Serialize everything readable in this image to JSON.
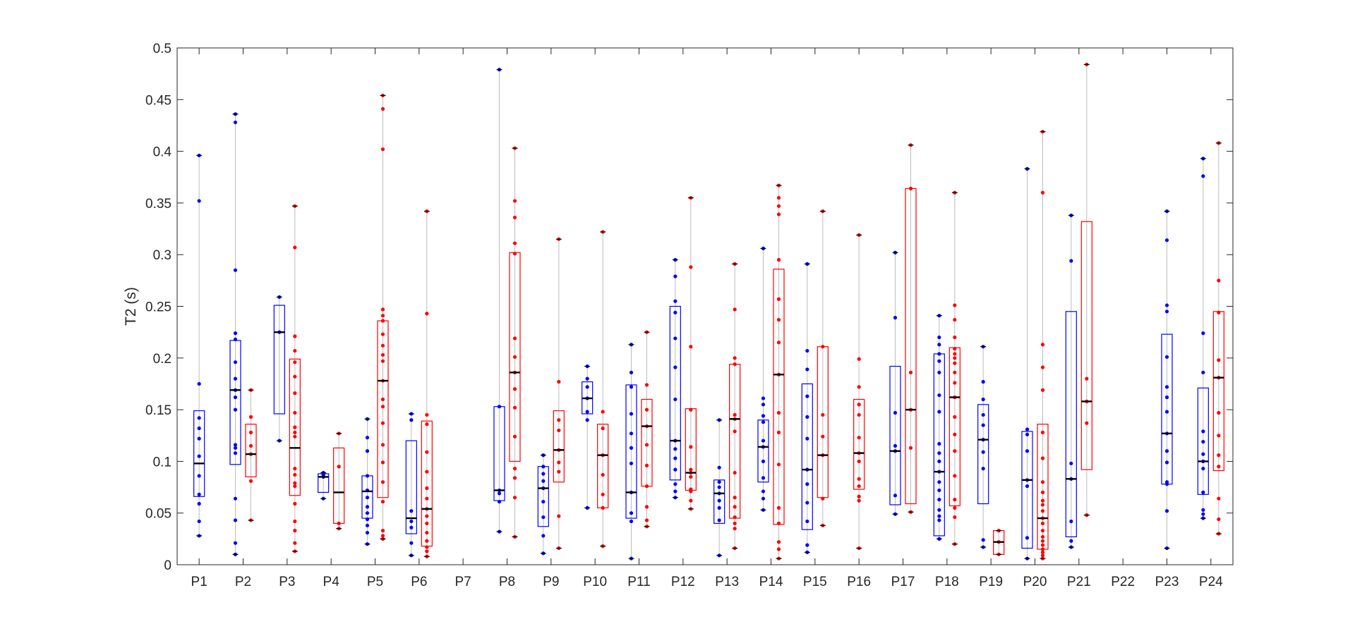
{
  "chart_data": {
    "type": "box",
    "title": "",
    "xlabel": "",
    "ylabel": "T2 (s)",
    "ylim": [
      0,
      0.5
    ],
    "yticks": [
      0,
      0.05,
      0.1,
      0.15,
      0.2,
      0.25,
      0.3,
      0.35,
      0.4,
      0.45,
      0.5
    ],
    "ytick_labels": [
      "0",
      "0.05",
      "0.1",
      "0.15",
      "0.2",
      "0.25",
      "0.3",
      "0.35",
      "0.4",
      "0.45",
      "0.5"
    ],
    "grid": false,
    "categories": [
      "P1",
      "P2",
      "P3",
      "P4",
      "P5",
      "P6",
      "P7",
      "P8",
      "P9",
      "P10",
      "P11",
      "P12",
      "P13",
      "P14",
      "P15",
      "P16",
      "P17",
      "P18",
      "P19",
      "P20",
      "P21",
      "P22",
      "P23",
      "P24"
    ],
    "colors": {
      "blue": "#0000ff",
      "red": "#ff0000",
      "median": "#000000",
      "whisker": "#bdbdbd",
      "axis": "#262626"
    },
    "series": [
      {
        "color": "blue",
        "boxes": [
          {
            "category": "P1",
            "q1": 0.066,
            "median": 0.098,
            "q3": 0.149,
            "min": 0.028,
            "max": 0.396,
            "points": [
              0.028,
              0.042,
              0.059,
              0.068,
              0.086,
              0.105,
              0.122,
              0.132,
              0.142,
              0.175,
              0.352,
              0.396
            ]
          },
          {
            "category": "P2",
            "q1": 0.097,
            "median": 0.169,
            "q3": 0.217,
            "min": 0.01,
            "max": 0.436,
            "points": [
              0.01,
              0.021,
              0.043,
              0.064,
              0.108,
              0.113,
              0.116,
              0.15,
              0.162,
              0.169,
              0.18,
              0.196,
              0.218,
              0.224,
              0.285,
              0.428,
              0.436
            ]
          },
          {
            "category": "P3",
            "q1": 0.146,
            "median": 0.225,
            "q3": 0.251,
            "min": 0.12,
            "max": 0.259,
            "points": [
              0.12,
              0.225,
              0.259
            ]
          },
          {
            "category": "P4",
            "q1": 0.07,
            "median": 0.085,
            "q3": 0.088,
            "min": 0.064,
            "max": 0.089,
            "points": [
              0.064,
              0.085,
              0.087,
              0.089
            ]
          },
          {
            "category": "P5",
            "q1": 0.045,
            "median": 0.071,
            "q3": 0.086,
            "min": 0.02,
            "max": 0.141,
            "points": [
              0.02,
              0.031,
              0.038,
              0.044,
              0.05,
              0.056,
              0.065,
              0.072,
              0.086,
              0.11,
              0.123,
              0.141
            ]
          },
          {
            "category": "P6",
            "q1": 0.03,
            "median": 0.045,
            "q3": 0.12,
            "min": 0.009,
            "max": 0.146,
            "points": [
              0.009,
              0.021,
              0.036,
              0.042,
              0.052,
              0.14,
              0.146
            ]
          },
          {
            "category": "P8",
            "q1": 0.062,
            "median": 0.072,
            "q3": 0.153,
            "min": 0.032,
            "max": 0.479,
            "points": [
              0.032,
              0.061,
              0.069,
              0.072,
              0.153,
              0.479
            ]
          },
          {
            "category": "P9",
            "q1": 0.037,
            "median": 0.074,
            "q3": 0.095,
            "min": 0.011,
            "max": 0.106,
            "points": [
              0.011,
              0.028,
              0.046,
              0.061,
              0.074,
              0.081,
              0.088,
              0.095,
              0.106
            ]
          },
          {
            "category": "P10",
            "q1": 0.146,
            "median": 0.161,
            "q3": 0.177,
            "min": 0.055,
            "max": 0.192,
            "points": [
              0.055,
              0.14,
              0.148,
              0.161,
              0.172,
              0.18,
              0.192
            ]
          },
          {
            "category": "P11",
            "q1": 0.045,
            "median": 0.07,
            "q3": 0.174,
            "min": 0.006,
            "max": 0.213,
            "points": [
              0.006,
              0.042,
              0.05,
              0.07,
              0.098,
              0.113,
              0.127,
              0.146,
              0.172,
              0.186,
              0.213
            ]
          },
          {
            "category": "P12",
            "q1": 0.082,
            "median": 0.12,
            "q3": 0.25,
            "min": 0.065,
            "max": 0.295,
            "points": [
              0.065,
              0.071,
              0.078,
              0.092,
              0.103,
              0.112,
              0.12,
              0.16,
              0.191,
              0.219,
              0.244,
              0.255,
              0.279,
              0.295
            ]
          },
          {
            "category": "P13",
            "q1": 0.04,
            "median": 0.069,
            "q3": 0.082,
            "min": 0.009,
            "max": 0.14,
            "points": [
              0.009,
              0.043,
              0.055,
              0.062,
              0.069,
              0.075,
              0.08,
              0.094,
              0.14
            ]
          },
          {
            "category": "P14",
            "q1": 0.08,
            "median": 0.114,
            "q3": 0.14,
            "min": 0.053,
            "max": 0.306,
            "points": [
              0.053,
              0.064,
              0.071,
              0.084,
              0.1,
              0.114,
              0.12,
              0.138,
              0.144,
              0.155,
              0.161,
              0.306
            ]
          },
          {
            "category": "P15",
            "q1": 0.034,
            "median": 0.092,
            "q3": 0.175,
            "min": 0.012,
            "max": 0.291,
            "points": [
              0.012,
              0.019,
              0.042,
              0.06,
              0.078,
              0.092,
              0.122,
              0.143,
              0.163,
              0.189,
              0.207,
              0.291
            ]
          },
          {
            "category": "P17",
            "q1": 0.058,
            "median": 0.11,
            "q3": 0.192,
            "min": 0.049,
            "max": 0.302,
            "points": [
              0.049,
              0.067,
              0.11,
              0.115,
              0.147,
              0.239,
              0.302
            ]
          },
          {
            "category": "P18",
            "q1": 0.028,
            "median": 0.09,
            "q3": 0.204,
            "min": 0.025,
            "max": 0.241,
            "points": [
              0.025,
              0.043,
              0.047,
              0.053,
              0.063,
              0.072,
              0.08,
              0.09,
              0.1,
              0.108,
              0.117,
              0.148,
              0.164,
              0.186,
              0.197,
              0.204,
              0.213,
              0.22,
              0.241
            ]
          },
          {
            "category": "P19",
            "q1": 0.059,
            "median": 0.121,
            "q3": 0.155,
            "min": 0.017,
            "max": 0.211,
            "points": [
              0.017,
              0.024,
              0.093,
              0.109,
              0.121,
              0.135,
              0.145,
              0.16,
              0.177,
              0.211
            ]
          },
          {
            "category": "P20",
            "q1": 0.016,
            "median": 0.082,
            "q3": 0.129,
            "min": 0.006,
            "max": 0.383,
            "points": [
              0.006,
              0.026,
              0.076,
              0.082,
              0.11,
              0.126,
              0.131,
              0.383
            ]
          },
          {
            "category": "P21",
            "q1": 0.027,
            "median": 0.083,
            "q3": 0.245,
            "min": 0.017,
            "max": 0.338,
            "points": [
              0.017,
              0.023,
              0.042,
              0.083,
              0.098,
              0.294,
              0.338
            ]
          },
          {
            "category": "P23",
            "q1": 0.078,
            "median": 0.127,
            "q3": 0.223,
            "min": 0.016,
            "max": 0.342,
            "points": [
              0.016,
              0.052,
              0.078,
              0.08,
              0.099,
              0.11,
              0.127,
              0.148,
              0.162,
              0.172,
              0.201,
              0.245,
              0.251,
              0.314,
              0.342
            ]
          },
          {
            "category": "P24",
            "q1": 0.068,
            "median": 0.1,
            "q3": 0.171,
            "min": 0.045,
            "max": 0.393,
            "points": [
              0.045,
              0.049,
              0.053,
              0.07,
              0.093,
              0.1,
              0.107,
              0.119,
              0.129,
              0.186,
              0.224,
              0.376,
              0.393
            ]
          }
        ]
      },
      {
        "color": "red",
        "boxes": [
          {
            "category": "P2",
            "q1": 0.085,
            "median": 0.107,
            "q3": 0.136,
            "min": 0.043,
            "max": 0.169,
            "points": [
              0.043,
              0.081,
              0.107,
              0.115,
              0.128,
              0.143,
              0.169
            ]
          },
          {
            "category": "P3",
            "q1": 0.067,
            "median": 0.113,
            "q3": 0.199,
            "min": 0.013,
            "max": 0.347,
            "points": [
              0.013,
              0.021,
              0.033,
              0.042,
              0.059,
              0.076,
              0.079,
              0.087,
              0.093,
              0.124,
              0.128,
              0.133,
              0.147,
              0.166,
              0.182,
              0.196,
              0.207,
              0.221,
              0.307,
              0.347
            ]
          },
          {
            "category": "P4",
            "q1": 0.04,
            "median": 0.07,
            "q3": 0.113,
            "min": 0.035,
            "max": 0.127,
            "points": [
              0.035,
              0.04,
              0.095,
              0.127
            ]
          },
          {
            "category": "P5",
            "q1": 0.065,
            "median": 0.178,
            "q3": 0.236,
            "min": 0.025,
            "max": 0.454,
            "points": [
              0.025,
              0.028,
              0.033,
              0.061,
              0.08,
              0.099,
              0.116,
              0.137,
              0.153,
              0.16,
              0.178,
              0.197,
              0.203,
              0.212,
              0.223,
              0.236,
              0.241,
              0.247,
              0.402,
              0.441,
              0.454
            ]
          },
          {
            "category": "P6",
            "q1": 0.018,
            "median": 0.054,
            "q3": 0.139,
            "min": 0.008,
            "max": 0.342,
            "points": [
              0.008,
              0.013,
              0.017,
              0.023,
              0.031,
              0.04,
              0.047,
              0.054,
              0.064,
              0.074,
              0.09,
              0.109,
              0.136,
              0.145,
              0.243,
              0.342
            ]
          },
          {
            "category": "P8",
            "q1": 0.1,
            "median": 0.186,
            "q3": 0.302,
            "min": 0.027,
            "max": 0.403,
            "points": [
              0.027,
              0.065,
              0.084,
              0.093,
              0.124,
              0.152,
              0.17,
              0.186,
              0.201,
              0.219,
              0.301,
              0.311,
              0.336,
              0.352,
              0.403
            ]
          },
          {
            "category": "P9",
            "q1": 0.08,
            "median": 0.111,
            "q3": 0.149,
            "min": 0.016,
            "max": 0.315,
            "points": [
              0.016,
              0.047,
              0.09,
              0.099,
              0.111,
              0.13,
              0.14,
              0.177,
              0.315
            ]
          },
          {
            "category": "P10",
            "q1": 0.055,
            "median": 0.106,
            "q3": 0.136,
            "min": 0.018,
            "max": 0.322,
            "points": [
              0.018,
              0.055,
              0.068,
              0.087,
              0.106,
              0.132,
              0.148,
              0.322
            ]
          },
          {
            "category": "P11",
            "q1": 0.076,
            "median": 0.134,
            "q3": 0.16,
            "min": 0.037,
            "max": 0.225,
            "points": [
              0.037,
              0.043,
              0.056,
              0.076,
              0.096,
              0.116,
              0.134,
              0.15,
              0.174,
              0.225
            ]
          },
          {
            "category": "P12",
            "q1": 0.072,
            "median": 0.089,
            "q3": 0.151,
            "min": 0.054,
            "max": 0.355,
            "points": [
              0.054,
              0.062,
              0.071,
              0.073,
              0.085,
              0.089,
              0.092,
              0.114,
              0.15,
              0.211,
              0.288,
              0.355
            ]
          },
          {
            "category": "P13",
            "q1": 0.045,
            "median": 0.141,
            "q3": 0.194,
            "min": 0.016,
            "max": 0.291,
            "points": [
              0.016,
              0.035,
              0.04,
              0.046,
              0.056,
              0.065,
              0.089,
              0.129,
              0.141,
              0.145,
              0.194,
              0.2,
              0.247,
              0.291
            ]
          },
          {
            "category": "P14",
            "q1": 0.039,
            "median": 0.184,
            "q3": 0.286,
            "min": 0.006,
            "max": 0.367,
            "points": [
              0.006,
              0.015,
              0.022,
              0.04,
              0.055,
              0.097,
              0.128,
              0.147,
              0.184,
              0.215,
              0.237,
              0.257,
              0.295,
              0.339,
              0.347,
              0.355,
              0.367
            ]
          },
          {
            "category": "P15",
            "q1": 0.065,
            "median": 0.106,
            "q3": 0.211,
            "min": 0.038,
            "max": 0.342,
            "points": [
              0.038,
              0.064,
              0.106,
              0.124,
              0.145,
              0.211,
              0.342
            ]
          },
          {
            "category": "P16",
            "q1": 0.073,
            "median": 0.108,
            "q3": 0.16,
            "min": 0.016,
            "max": 0.319,
            "points": [
              0.016,
              0.062,
              0.066,
              0.076,
              0.083,
              0.1,
              0.108,
              0.123,
              0.145,
              0.155,
              0.172,
              0.199,
              0.319
            ]
          },
          {
            "category": "P17",
            "q1": 0.059,
            "median": 0.15,
            "q3": 0.364,
            "min": 0.051,
            "max": 0.406,
            "points": [
              0.051,
              0.113,
              0.15,
              0.186,
              0.364,
              0.406
            ]
          },
          {
            "category": "P18",
            "q1": 0.057,
            "median": 0.162,
            "q3": 0.21,
            "min": 0.02,
            "max": 0.36,
            "points": [
              0.02,
              0.046,
              0.055,
              0.063,
              0.086,
              0.11,
              0.126,
              0.143,
              0.162,
              0.176,
              0.186,
              0.195,
              0.2,
              0.204,
              0.209,
              0.22,
              0.237,
              0.251,
              0.36
            ]
          },
          {
            "category": "P19",
            "q1": 0.01,
            "median": 0.022,
            "q3": 0.033,
            "min": 0.01,
            "max": 0.033,
            "points": [
              0.01,
              0.022,
              0.033
            ]
          },
          {
            "category": "P20",
            "q1": 0.015,
            "median": 0.045,
            "q3": 0.136,
            "min": 0.006,
            "max": 0.419,
            "points": [
              0.006,
              0.009,
              0.012,
              0.015,
              0.019,
              0.023,
              0.027,
              0.033,
              0.04,
              0.045,
              0.052,
              0.058,
              0.062,
              0.07,
              0.08,
              0.103,
              0.128,
              0.169,
              0.191,
              0.213,
              0.36,
              0.419
            ]
          },
          {
            "category": "P21",
            "q1": 0.092,
            "median": 0.158,
            "q3": 0.332,
            "min": 0.048,
            "max": 0.484,
            "points": [
              0.048,
              0.137,
              0.158,
              0.18,
              0.484
            ]
          },
          {
            "category": "P24",
            "q1": 0.091,
            "median": 0.181,
            "q3": 0.245,
            "min": 0.03,
            "max": 0.408,
            "points": [
              0.03,
              0.044,
              0.064,
              0.095,
              0.106,
              0.125,
              0.147,
              0.181,
              0.198,
              0.244,
              0.275,
              0.408
            ]
          }
        ]
      }
    ]
  }
}
